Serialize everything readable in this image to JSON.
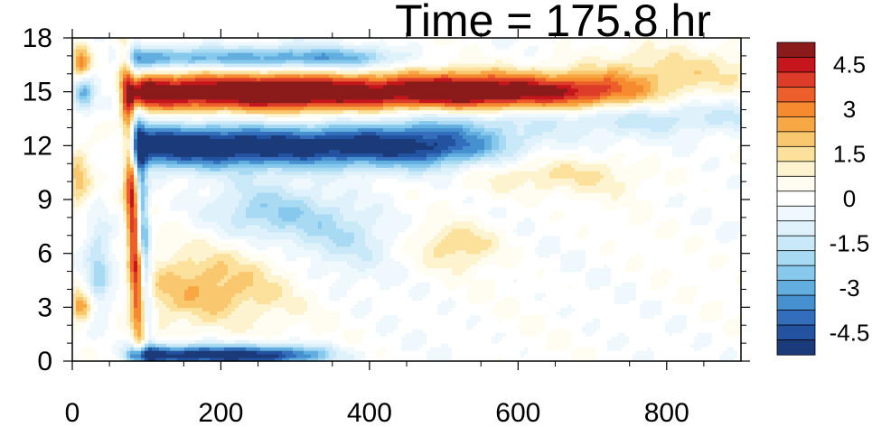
{
  "chart_data": {
    "type": "heatmap",
    "title": "Time = 175.8 hr",
    "xlabel": "",
    "ylabel": "",
    "xlim": [
      0,
      900
    ],
    "ylim": [
      0,
      18
    ],
    "x_ticks": [
      "0",
      "200",
      "400",
      "600",
      "800"
    ],
    "y_ticks": [
      "0",
      "3",
      "6",
      "9",
      "12",
      "15",
      "18"
    ],
    "colorbar": {
      "min": -5.25,
      "max": 5.25,
      "step": 0.5,
      "labels": [
        "4.5",
        "3",
        "1.5",
        "0",
        "-1.5",
        "-3",
        "-4.5"
      ],
      "colors": [
        "#8b1a1a",
        "#c4161c",
        "#dd3c28",
        "#ec5e2a",
        "#f58a2f",
        "#f7a844",
        "#f9c76d",
        "#fbe19b",
        "#fdf3cf",
        "#fffdf1",
        "#ffffff",
        "#eef8fd",
        "#dff1fb",
        "#c9e8f8",
        "#a8daf4",
        "#86c9ec",
        "#62aedf",
        "#4690cf",
        "#326ebb",
        "#2352a0",
        "#1b3a7a"
      ]
    },
    "features": [
      {
        "label": "positive band",
        "x_range": [
          75,
          780
        ],
        "y_center": 15.0,
        "peak": 5.2
      },
      {
        "label": "negative band",
        "x_range": [
          80,
          620
        ],
        "y_center": 12.0,
        "peak": -5.0
      },
      {
        "label": "upper negative band",
        "x_range": [
          100,
          420
        ],
        "y_center": 16.8,
        "peak": -3.0
      },
      {
        "label": "surface negative band",
        "x_range": [
          70,
          320
        ],
        "y_center": 0.4,
        "peak": -5.0
      },
      {
        "label": "front",
        "x_range": [
          60,
          90
        ],
        "y_center": 9.0,
        "peak": 4.0
      }
    ]
  }
}
